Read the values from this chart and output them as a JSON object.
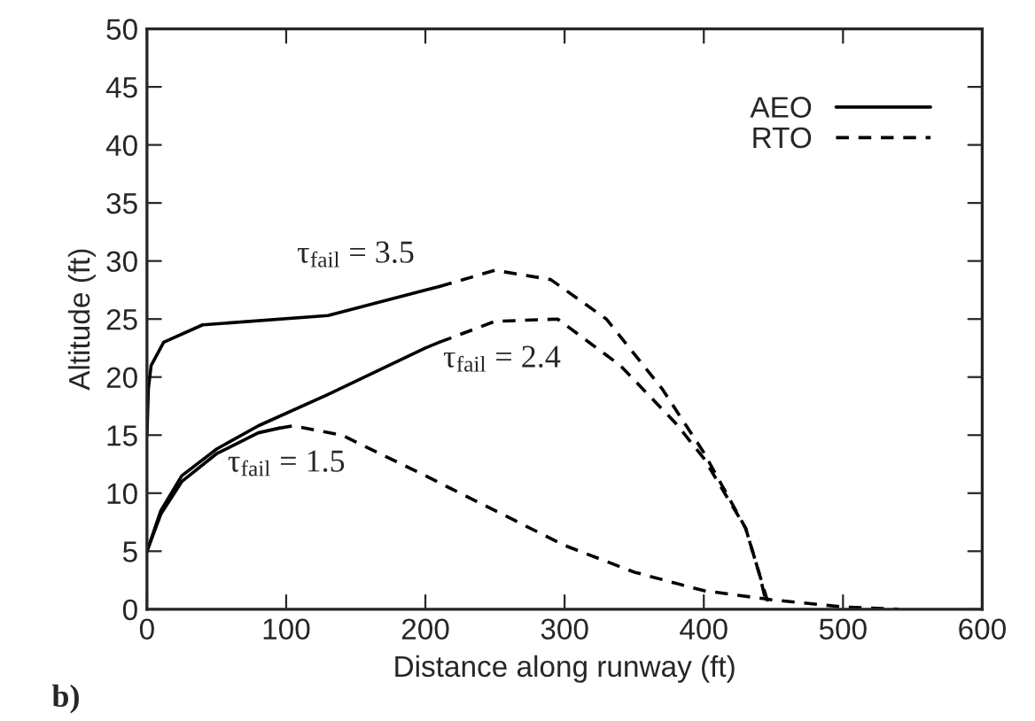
{
  "chart_data": {
    "type": "line",
    "xlabel": "Distance along runway (ft)",
    "ylabel": "Altitude (ft)",
    "xlim": [
      0,
      600
    ],
    "xticks": [
      0,
      100,
      200,
      300,
      400,
      500,
      600
    ],
    "ylim": [
      0,
      50
    ],
    "yticks": [
      0,
      5,
      10,
      15,
      20,
      25,
      30,
      35,
      40,
      45,
      50
    ],
    "grid": false,
    "legend": "top right",
    "marker": "none",
    "series": [
      {
        "name": "AEO",
        "color": "#000000",
        "line_style": "solid",
        "x": [
          0,
          1,
          3,
          12,
          40,
          130,
          200,
          210
        ],
        "values": [
          15,
          19,
          21,
          23,
          24.5,
          25.3,
          27.5,
          27.8
        ]
      },
      {
        "name": "RTO",
        "color": "#000000",
        "line_style": "dashed",
        "x": [
          210,
          250,
          290,
          330,
          370,
          400,
          430,
          440,
          445
        ],
        "values": [
          27.8,
          29.2,
          28.4,
          25,
          19,
          13.5,
          7,
          3,
          0.5
        ]
      },
      {
        "color": "#000000",
        "line_style": "solid",
        "x": [
          0,
          10,
          25,
          50,
          80,
          130,
          200,
          210
        ],
        "values": [
          5,
          8.5,
          11.5,
          13.8,
          15.8,
          18.5,
          22.5,
          23
        ]
      },
      {
        "color": "#000000",
        "line_style": "dashed",
        "x": [
          210,
          250,
          295,
          340,
          380,
          400,
          430,
          445,
          448
        ],
        "values": [
          23,
          24.8,
          25,
          21,
          16,
          13,
          7,
          1,
          0
        ]
      },
      {
        "color": "#000000",
        "line_style": "solid",
        "x": [
          0,
          10,
          25,
          50,
          80,
          95
        ],
        "values": [
          5,
          8.2,
          11,
          13.4,
          15.2,
          15.6
        ]
      },
      {
        "color": "#000000",
        "line_style": "dashed",
        "x": [
          95,
          105,
          140,
          200,
          250,
          300,
          350,
          400,
          450,
          500,
          540
        ],
        "values": [
          15.6,
          15.8,
          15,
          11.5,
          8.5,
          5.5,
          3.2,
          1.6,
          0.8,
          0.2,
          0
        ]
      }
    ],
    "annotations": [
      "τ$_{fail}$ = 3.5",
      "τ$_{fail}$ = 2.4",
      "τ$_{fail}$ = 1.5",
      "b)"
    ]
  }
}
